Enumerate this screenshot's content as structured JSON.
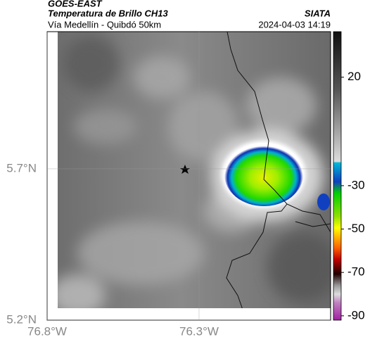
{
  "header": {
    "product": "GOES-EAST",
    "title": "Temperatura de Brillo CH13",
    "source": "SIATA",
    "subtitle": "Vía Medellín - Quibdó 50km",
    "datetime": "2024-04-03 14:19"
  },
  "map": {
    "xlim": [
      -76.8,
      -75.867
    ],
    "ylim": [
      5.2,
      6.153
    ],
    "xticks": [
      {
        "value": -76.8,
        "label": "76.8°W"
      },
      {
        "value": -76.3,
        "label": "76.3°W"
      }
    ],
    "yticks": [
      {
        "value": 5.2,
        "label": "5.2°N"
      },
      {
        "value": 5.7,
        "label": "5.7°N"
      }
    ]
  },
  "colorbar": {
    "lim": [
      -92,
      41
    ],
    "ticks": [
      20,
      -30,
      -50,
      -70,
      -90
    ]
  }
}
